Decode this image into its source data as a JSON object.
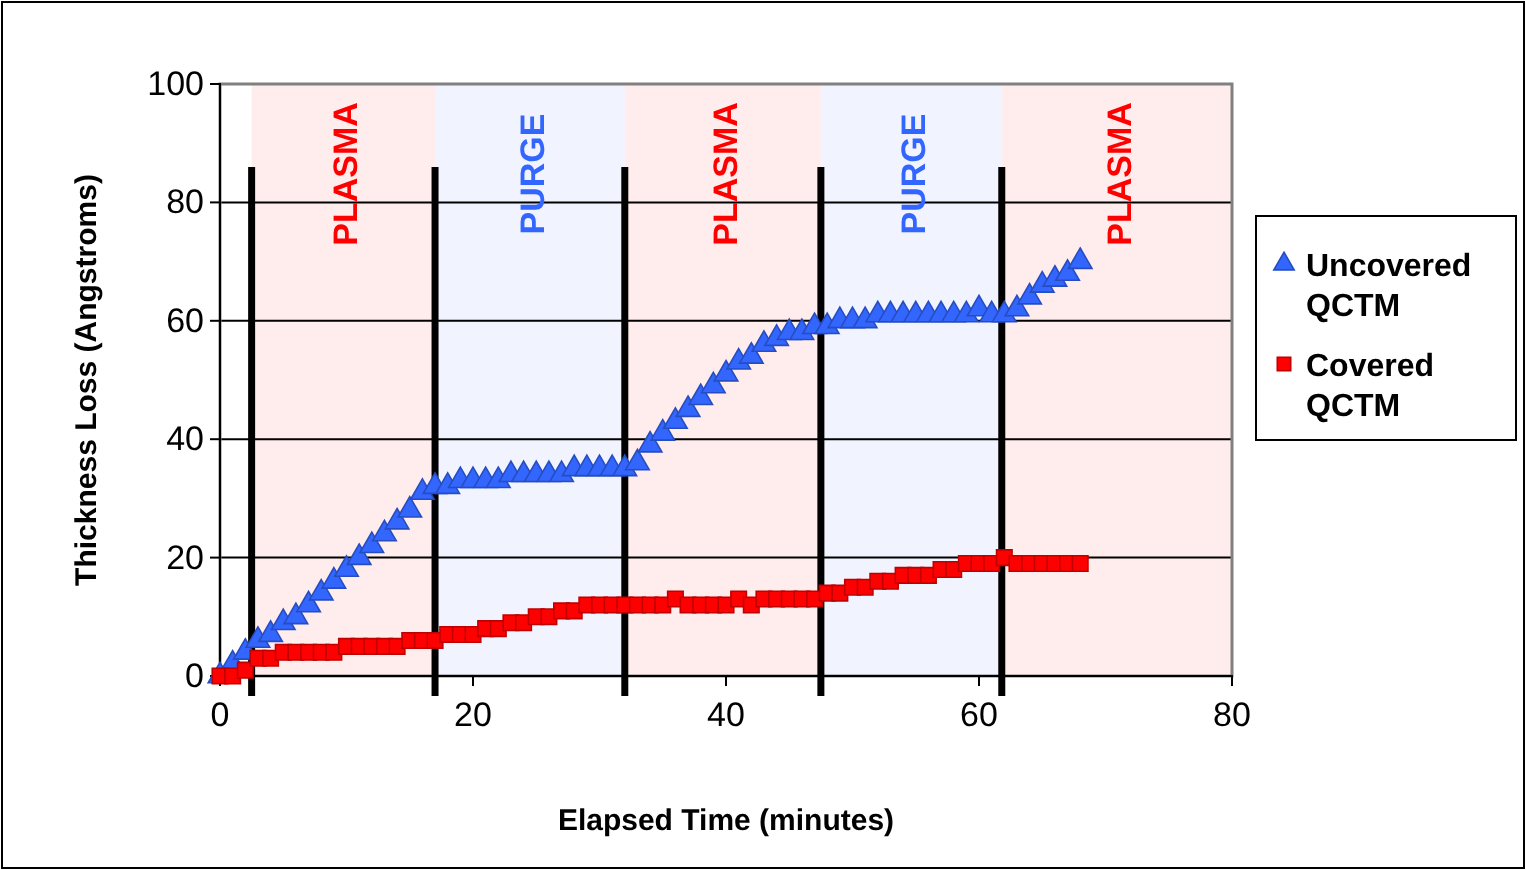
{
  "chart_data": {
    "type": "scatter",
    "xlabel": "Elapsed Time (minutes)",
    "ylabel": "Thickness Loss (Angstroms)",
    "xlim": [
      0,
      80
    ],
    "xticks": [
      0,
      20,
      40,
      60,
      80
    ],
    "ylim": [
      0,
      100
    ],
    "yticks": [
      0,
      20,
      40,
      60,
      80,
      100
    ],
    "grid": "y",
    "legend": "right",
    "x": [
      0,
      1,
      2,
      3,
      4,
      5,
      6,
      7,
      8,
      9,
      10,
      11,
      12,
      13,
      14,
      15,
      16,
      17,
      18,
      19,
      20,
      21,
      22,
      23,
      24,
      25,
      26,
      27,
      28,
      29,
      30,
      31,
      32,
      33,
      34,
      35,
      36,
      37,
      38,
      39,
      40,
      41,
      42,
      43,
      44,
      45,
      46,
      47,
      48,
      49,
      50,
      51,
      52,
      53,
      54,
      55,
      56,
      57,
      58,
      59,
      60,
      61,
      62,
      63,
      64,
      65,
      66,
      67,
      68
    ],
    "series": [
      {
        "name": "Uncovered QCTM",
        "color": "#3366ff",
        "marker": "triangle",
        "values": [
          0,
          2,
          4,
          6,
          7,
          9,
          10,
          12,
          14,
          16,
          18,
          20,
          22,
          24,
          26,
          28,
          31,
          32,
          32,
          33,
          33,
          33,
          33,
          34,
          34,
          34,
          34,
          34,
          35,
          35,
          35,
          35,
          35,
          36,
          39,
          41,
          43,
          45,
          47,
          49,
          51,
          53,
          54,
          56,
          57,
          58,
          58,
          59,
          59,
          60,
          60,
          60,
          61,
          61,
          61,
          61,
          61,
          61,
          61,
          61,
          62,
          61,
          61,
          62,
          64,
          66,
          67,
          68,
          70
        ]
      },
      {
        "name": "Covered QCTM",
        "color": "#ff0000",
        "marker": "square",
        "values": [
          0,
          0,
          1,
          3,
          3,
          4,
          4,
          4,
          4,
          4,
          5,
          5,
          5,
          5,
          5,
          6,
          6,
          6,
          7,
          7,
          7,
          8,
          8,
          9,
          9,
          10,
          10,
          11,
          11,
          12,
          12,
          12,
          12,
          12,
          12,
          12,
          13,
          12,
          12,
          12,
          12,
          13,
          12,
          13,
          13,
          13,
          13,
          13,
          14,
          14,
          15,
          15,
          16,
          16,
          17,
          17,
          17,
          18,
          18,
          19,
          19,
          19,
          20,
          19,
          19,
          19,
          19,
          19,
          19
        ]
      }
    ],
    "ref_lines": [
      {
        "axis": "x",
        "value": 2.5,
        "color": "#000000"
      },
      {
        "axis": "x",
        "value": 17,
        "color": "#000000"
      },
      {
        "axis": "x",
        "value": 32,
        "color": "#000000"
      },
      {
        "axis": "x",
        "value": 47.5,
        "color": "#000000"
      },
      {
        "axis": "x",
        "value": 61.8,
        "color": "#000000"
      }
    ],
    "bands": [
      {
        "axis": "x",
        "from": 2.5,
        "to": 17,
        "label": "PLASMA",
        "color": "#ff0000"
      },
      {
        "axis": "x",
        "from": 17,
        "to": 32,
        "label": "PURGE",
        "color": "#3366ff"
      },
      {
        "axis": "x",
        "from": 32,
        "to": 47.5,
        "label": "PLASMA",
        "color": "#ff0000"
      },
      {
        "axis": "x",
        "from": 47.5,
        "to": 61.8,
        "label": "PURGE",
        "color": "#3366ff"
      },
      {
        "axis": "x",
        "from": 61.8,
        "to": 80,
        "label": "PLASMA",
        "color": "#ff0000"
      }
    ]
  }
}
